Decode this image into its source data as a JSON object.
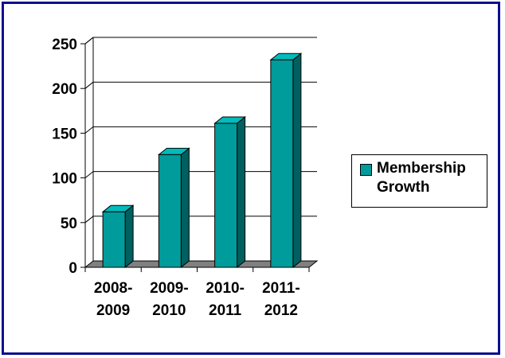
{
  "chart_data": {
    "type": "bar",
    "style": "3d-column",
    "categories": [
      [
        "2008-",
        "2009"
      ],
      [
        "2009-",
        "2010"
      ],
      [
        "2010-",
        "2011"
      ],
      [
        "2011-",
        "2012"
      ]
    ],
    "series": [
      {
        "name": "Membership Growth",
        "values": [
          62,
          126,
          161,
          232
        ]
      }
    ],
    "ylim": [
      0,
      250
    ],
    "yticks": [
      "0",
      "50",
      "100",
      "150",
      "200",
      "250"
    ],
    "ytick_values": [
      0,
      50,
      100,
      150,
      200,
      250
    ],
    "grid": true,
    "legend": {
      "position": "right",
      "label": "Membership Growth"
    },
    "colors": {
      "front": "#009b9b",
      "side": "#005f5f",
      "top": "#00bcbc",
      "floor": "#808080",
      "frame": "#0b0f8f"
    }
  }
}
